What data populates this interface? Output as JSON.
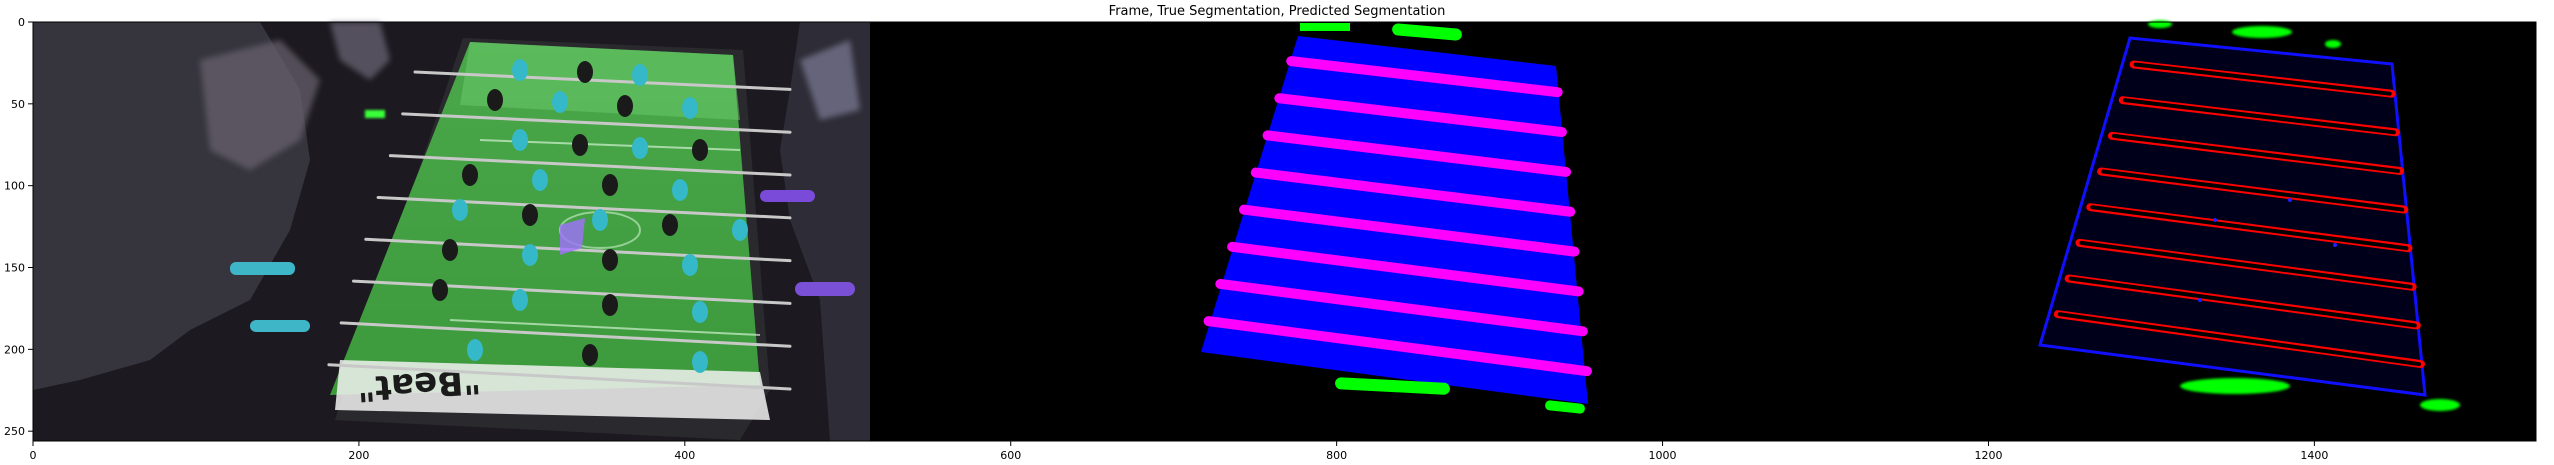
{
  "figure": {
    "title": "Frame, True Segmentation, Predicted Segmentation",
    "panels": [
      "Frame",
      "True Segmentation",
      "Predicted Segmentation"
    ],
    "x_axis": {
      "range": [
        0,
        1536
      ],
      "ticks": [
        "0",
        "200",
        "400",
        "600",
        "800",
        "1000",
        "1200",
        "1400"
      ]
    },
    "y_axis": {
      "range": [
        0,
        256
      ],
      "ticks": [
        "0",
        "50",
        "100",
        "150",
        "200",
        "250"
      ]
    },
    "frame_text": "\"Beat\"",
    "colors": {
      "background": "#000000",
      "table_field": "#2a7a2a",
      "true_field": "#0000ff",
      "rod": "#ff00ff",
      "predicted_rod": "#ff0000",
      "goal_marker": "#00ff00",
      "player_cyan": "#35b8c8",
      "player_dark": "#1a1a1a"
    }
  }
}
